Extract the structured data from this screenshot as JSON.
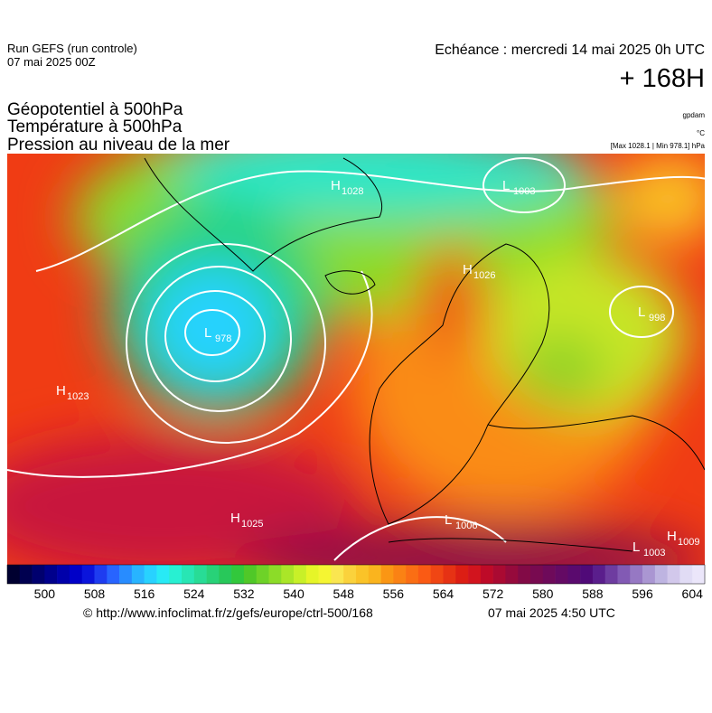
{
  "header": {
    "run": "Run GEFS (run controle)",
    "run_date": "07 mai 2025 00Z",
    "valid": "Echéance : mercredi 14 mai 2025 0h UTC",
    "lead": "+ 168H",
    "fields": [
      "Géopotentiel à 500hPa",
      "Température à 500hPa",
      "Pression au niveau de la mer"
    ],
    "units": [
      "gpdam",
      "°C",
      "[Max 1028.1 | Min 978.1] hPa"
    ]
  },
  "map": {
    "centers": [
      {
        "letter": "H",
        "value": "1028"
      },
      {
        "letter": "L",
        "value": "1003"
      },
      {
        "letter": "L",
        "value": "978"
      },
      {
        "letter": "H",
        "value": "1023"
      },
      {
        "letter": "H",
        "value": "1025"
      },
      {
        "letter": "L",
        "value": "1006"
      },
      {
        "letter": "L",
        "value": "998"
      },
      {
        "letter": "L",
        "value": "1003"
      },
      {
        "letter": "H",
        "value": "1009"
      },
      {
        "letter": "H",
        "value": "1026"
      }
    ]
  },
  "colorbar": {
    "range": [
      494,
      606
    ],
    "ticks": [
      500,
      508,
      516,
      524,
      532,
      540,
      548,
      556,
      564,
      572,
      580,
      588,
      596,
      604
    ],
    "colors": [
      "#000030",
      "#000050",
      "#00006e",
      "#00008c",
      "#0000aa",
      "#0000c8",
      "#0a14dc",
      "#1e3cf0",
      "#2864ff",
      "#288cff",
      "#28b4ff",
      "#28d2ff",
      "#28eaf5",
      "#28f0d2",
      "#28e6b4",
      "#28dc96",
      "#28d278",
      "#28c85a",
      "#32c83c",
      "#50c828",
      "#6ed228",
      "#8cdc28",
      "#aae628",
      "#c8f028",
      "#e6f528",
      "#f5f532",
      "#fae650",
      "#fad23c",
      "#fac328",
      "#fab41e",
      "#fa9614",
      "#fa8214",
      "#fa6e14",
      "#fa5a14",
      "#f04614",
      "#e63214",
      "#dc1e14",
      "#d2141e",
      "#be0a28",
      "#aa0a32",
      "#960a3c",
      "#820a46",
      "#780a50",
      "#6e0a5a",
      "#640a64",
      "#5a0a6e",
      "#500a78",
      "#5a1e8c",
      "#6e3ca0",
      "#825ab4",
      "#9678c3",
      "#aa96d2",
      "#beb4e1",
      "#d2c8eb",
      "#e1dcf5",
      "#ebe6fa"
    ]
  },
  "footer": {
    "source": "© http://www.infoclimat.fr/z/gefs/europe/ctrl-500/168",
    "generated": "07 mai 2025  4:50 UTC"
  }
}
